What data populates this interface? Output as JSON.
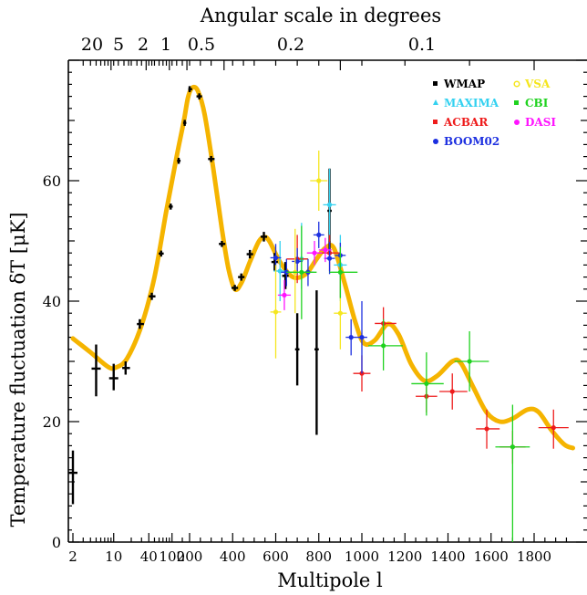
{
  "chart_data": {
    "type": "scatter",
    "title": "",
    "top_axis": {
      "label": "Angular scale in degrees",
      "ticks": [
        {
          "label": "20",
          "l": 9
        },
        {
          "label": "5",
          "l": 36
        },
        {
          "label": "2",
          "l": 90
        },
        {
          "label": "1",
          "l": 180
        },
        {
          "label": "0.5",
          "l": 360
        },
        {
          "label": "0.2",
          "l": 900
        },
        {
          "label": "0.1",
          "l": 1800
        }
      ]
    },
    "xlabel": "Multipole l",
    "ylabel": "Temperature fluctuation δT  [μK]",
    "x_ticks": [
      {
        "label": "2",
        "l": 2
      },
      {
        "label": "10",
        "l": 10
      },
      {
        "label": "40",
        "l": 40
      },
      {
        "label": "100",
        "l": 100
      },
      {
        "label": "200",
        "l": 200
      },
      {
        "label": "400",
        "l": 400
      },
      {
        "label": "600",
        "l": 600
      },
      {
        "label": "800",
        "l": 800
      },
      {
        "label": "1000",
        "l": 1000
      },
      {
        "label": "1200",
        "l": 1200
      },
      {
        "label": "1400",
        "l": 1400
      },
      {
        "label": "1600",
        "l": 1600
      },
      {
        "label": "1800",
        "l": 1800
      }
    ],
    "y_ticks": [
      0,
      20,
      40,
      60
    ],
    "ylim": [
      0,
      80
    ],
    "legend_position": "top-right",
    "model_curve": {
      "color": "#f5b400",
      "points": [
        [
          2,
          33.8
        ],
        [
          4,
          31.5
        ],
        [
          8,
          29.1
        ],
        [
          11,
          29
        ],
        [
          17,
          30.5
        ],
        [
          30,
          36
        ],
        [
          50,
          44
        ],
        [
          80,
          55
        ],
        [
          120,
          64
        ],
        [
          160,
          70
        ],
        [
          190,
          74
        ],
        [
          215,
          75.5
        ],
        [
          240,
          74.8
        ],
        [
          270,
          71
        ],
        [
          310,
          62
        ],
        [
          350,
          52
        ],
        [
          380,
          45.5
        ],
        [
          410,
          42
        ],
        [
          440,
          43
        ],
        [
          480,
          46.5
        ],
        [
          520,
          49.8
        ],
        [
          545,
          50.6
        ],
        [
          570,
          50
        ],
        [
          620,
          46.5
        ],
        [
          680,
          44
        ],
        [
          740,
          44.5
        ],
        [
          790,
          47
        ],
        [
          830,
          48.8
        ],
        [
          870,
          48.8
        ],
        [
          920,
          43
        ],
        [
          970,
          36.5
        ],
        [
          1010,
          33
        ],
        [
          1060,
          33.5
        ],
        [
          1120,
          36.2
        ],
        [
          1170,
          34.5
        ],
        [
          1230,
          29.5
        ],
        [
          1290,
          26.8
        ],
        [
          1350,
          27.6
        ],
        [
          1420,
          30
        ],
        [
          1460,
          29.7
        ],
        [
          1520,
          25.5
        ],
        [
          1580,
          21.5
        ],
        [
          1640,
          20
        ],
        [
          1700,
          20.5
        ],
        [
          1770,
          22
        ],
        [
          1820,
          21.6
        ],
        [
          1880,
          18.6
        ],
        [
          1940,
          16.2
        ],
        [
          1980,
          15.6
        ]
      ]
    },
    "series": [
      {
        "name": "WMAP",
        "color": "#000000",
        "points": [
          {
            "x": 2,
            "y": 11.5,
            "yerr": [
              6.3,
              15.2
            ],
            "xerr": [
              0,
              0
            ]
          },
          {
            "x": 5,
            "y": 28.8,
            "yerr": [
              24.2,
              32.8
            ],
            "xerr": [
              0,
              0
            ]
          },
          {
            "x": 10,
            "y": 27.2,
            "yerr": [
              25.2,
              29.6
            ],
            "xerr": [
              0,
              0
            ]
          },
          {
            "x": 16,
            "y": 28.9,
            "yerr": [
              27.8,
              30
            ],
            "xerr": [
              14,
              19
            ]
          },
          {
            "x": 28,
            "y": 36.2,
            "yerr": [
              35.4,
              37
            ],
            "xerr": [
              25,
              33
            ]
          },
          {
            "x": 45,
            "y": 40.8,
            "yerr": [
              40.2,
              41.4
            ],
            "xerr": [
              40,
              52
            ]
          },
          {
            "x": 65,
            "y": 47.9,
            "yerr": [
              47.4,
              48.4
            ],
            "xerr": [
              59,
              72
            ]
          },
          {
            "x": 95,
            "y": 55.7,
            "yerr": [
              55.2,
              56.2
            ],
            "xerr": [
              88,
              103
            ]
          },
          {
            "x": 130,
            "y": 63.3,
            "yerr": [
              62.8,
              63.8
            ],
            "xerr": [
              122,
              140
            ]
          },
          {
            "x": 165,
            "y": 69.6,
            "yerr": [
              69.1,
              70.1
            ],
            "xerr": [
              155,
              176
            ]
          },
          {
            "x": 200,
            "y": 75.2,
            "yerr": [
              74.7,
              75.7
            ],
            "xerr": [
              190,
              212
            ]
          },
          {
            "x": 245,
            "y": 74,
            "yerr": [
              73.5,
              74.5
            ],
            "xerr": [
              232,
              258
            ]
          },
          {
            "x": 300,
            "y": 63.6,
            "yerr": [
              63.1,
              64.1
            ],
            "xerr": [
              286,
              316
            ]
          },
          {
            "x": 350,
            "y": 49.5,
            "yerr": [
              49,
              50
            ],
            "xerr": [
              336,
              366
            ]
          },
          {
            "x": 410,
            "y": 42.2,
            "yerr": [
              41.7,
              42.7
            ],
            "xerr": [
              395,
              425
            ]
          },
          {
            "x": 440,
            "y": 44,
            "yerr": [
              43.4,
              44.6
            ],
            "xerr": [
              425,
              455
            ]
          },
          {
            "x": 480,
            "y": 47.8,
            "yerr": [
              47.1,
              48.5
            ],
            "xerr": [
              465,
              495
            ]
          },
          {
            "x": 545,
            "y": 50.7,
            "yerr": [
              49.9,
              51.5
            ],
            "xerr": [
              530,
              560
            ]
          },
          {
            "x": 595,
            "y": 46.5,
            "yerr": [
              45,
              48
            ],
            "xerr": [
              580,
              610
            ]
          },
          {
            "x": 645,
            "y": 44.2,
            "yerr": [
              42,
              46.5
            ],
            "xerr": [
              630,
              660
            ]
          },
          {
            "x": 700,
            "y": 32,
            "yerr": [
              26,
              38
            ],
            "xerr": [
              690,
              710
            ]
          },
          {
            "x": 790,
            "y": 32,
            "yerr": [
              17.8,
              41.8
            ],
            "xerr": [
              780,
              800
            ]
          },
          {
            "x": 850,
            "y": 55,
            "yerr": [
              48,
              62
            ],
            "xerr": [
              840,
              860
            ]
          }
        ]
      },
      {
        "name": "MAXIMA",
        "color": "#33d1f0",
        "points": [
          {
            "x": 620,
            "y": 45,
            "yerr": [
              40,
              50
            ],
            "xerr": [
              590,
              650
            ]
          },
          {
            "x": 720,
            "y": 47,
            "yerr": [
              42,
              53
            ],
            "xerr": [
              690,
              750
            ]
          },
          {
            "x": 850,
            "y": 56,
            "yerr": [
              50,
              62
            ],
            "xerr": [
              820,
              880
            ]
          },
          {
            "x": 900,
            "y": 46,
            "yerr": [
              40,
              51
            ],
            "xerr": [
              870,
              930
            ]
          }
        ]
      },
      {
        "name": "ACBAR",
        "color": "#ee1c1c",
        "points": [
          {
            "x": 700,
            "y": 47,
            "yerr": [
              43,
              51
            ],
            "xerr": [
              650,
              750
            ]
          },
          {
            "x": 850,
            "y": 48,
            "yerr": [
              45,
              51
            ],
            "xerr": [
              800,
              900
            ]
          },
          {
            "x": 1000,
            "y": 28,
            "yerr": [
              25,
              31
            ],
            "xerr": [
              960,
              1040
            ]
          },
          {
            "x": 1100,
            "y": 36.3,
            "yerr": [
              33.5,
              39
            ],
            "xerr": [
              1060,
              1160
            ]
          },
          {
            "x": 1300,
            "y": 24.2,
            "yerr": [
              21.5,
              27
            ],
            "xerr": [
              1250,
              1350
            ]
          },
          {
            "x": 1420,
            "y": 25,
            "yerr": [
              22,
              28
            ],
            "xerr": [
              1360,
              1490
            ]
          },
          {
            "x": 1580,
            "y": 18.8,
            "yerr": [
              15.5,
              22
            ],
            "xerr": [
              1530,
              1640
            ]
          },
          {
            "x": 1700,
            "y": 15.8,
            "yerr": [
              13,
              18.5
            ],
            "xerr": [
              1640,
              1760
            ]
          },
          {
            "x": 1890,
            "y": 19,
            "yerr": [
              15.5,
              22
            ],
            "xerr": [
              1820,
              1960
            ]
          }
        ]
      },
      {
        "name": "BOOM02",
        "color": "#1c2fe0",
        "points": [
          {
            "x": 600,
            "y": 47.2,
            "yerr": [
              45,
              49.5
            ],
            "xerr": [
              575,
              625
            ]
          },
          {
            "x": 650,
            "y": 44.8,
            "yerr": [
              42.5,
              47
            ],
            "xerr": [
              625,
              675
            ]
          },
          {
            "x": 700,
            "y": 46.6,
            "yerr": [
              44.5,
              48.8
            ],
            "xerr": [
              675,
              725
            ]
          },
          {
            "x": 750,
            "y": 44.8,
            "yerr": [
              42.5,
              47
            ],
            "xerr": [
              725,
              775
            ]
          },
          {
            "x": 800,
            "y": 51,
            "yerr": [
              48.8,
              53.2
            ],
            "xerr": [
              775,
              825
            ]
          },
          {
            "x": 850,
            "y": 47.1,
            "yerr": [
              44.5,
              49.8
            ],
            "xerr": [
              825,
              875
            ]
          },
          {
            "x": 900,
            "y": 47.6,
            "yerr": [
              40.6,
              49.7
            ],
            "xerr": [
              875,
              925
            ]
          },
          {
            "x": 950,
            "y": 34,
            "yerr": [
              31,
              37
            ],
            "xerr": [
              925,
              975
            ]
          },
          {
            "x": 1000,
            "y": 34,
            "yerr": [
              28,
              40
            ],
            "xerr": [
              975,
              1025
            ]
          }
        ]
      },
      {
        "name": "VSA",
        "color": "#f5e61e",
        "points": [
          {
            "x": 600,
            "y": 38.2,
            "yerr": [
              30.5,
              46
            ],
            "xerr": [
              575,
              625
            ]
          },
          {
            "x": 690,
            "y": 44.8,
            "yerr": [
              38,
              52
            ],
            "xerr": [
              660,
              720
            ]
          },
          {
            "x": 800,
            "y": 60,
            "yerr": [
              55,
              65
            ],
            "xerr": [
              760,
              840
            ]
          },
          {
            "x": 900,
            "y": 38,
            "yerr": [
              32,
              44
            ],
            "xerr": [
              870,
              930
            ]
          }
        ]
      },
      {
        "name": "CBI",
        "color": "#1fd21f",
        "points": [
          {
            "x": 720,
            "y": 44.8,
            "yerr": [
              37,
              52.5
            ],
            "xerr": [
              650,
              790
            ]
          },
          {
            "x": 900,
            "y": 44.8,
            "yerr": [
              40.5,
              49
            ],
            "xerr": [
              850,
              980
            ]
          },
          {
            "x": 1100,
            "y": 32.6,
            "yerr": [
              28.5,
              37
            ],
            "xerr": [
              1030,
              1190
            ]
          },
          {
            "x": 1300,
            "y": 26.3,
            "yerr": [
              21,
              31.5
            ],
            "xerr": [
              1230,
              1380
            ]
          },
          {
            "x": 1500,
            "y": 30,
            "yerr": [
              25,
              35
            ],
            "xerr": [
              1430,
              1590
            ]
          },
          {
            "x": 1700,
            "y": 15.8,
            "yerr": [
              0,
              22.8
            ],
            "xerr": [
              1620,
              1780
            ]
          }
        ]
      },
      {
        "name": "DASI",
        "color": "#ff14ff",
        "points": [
          {
            "x": 640,
            "y": 41,
            "yerr": [
              38.5,
              43.5
            ],
            "xerr": [
              610,
              670
            ]
          },
          {
            "x": 780,
            "y": 48,
            "yerr": [
              46,
              50
            ],
            "xerr": [
              745,
              815
            ]
          },
          {
            "x": 830,
            "y": 48.5,
            "yerr": [
              46.5,
              50.5
            ],
            "xerr": [
              800,
              860
            ]
          }
        ]
      }
    ]
  }
}
